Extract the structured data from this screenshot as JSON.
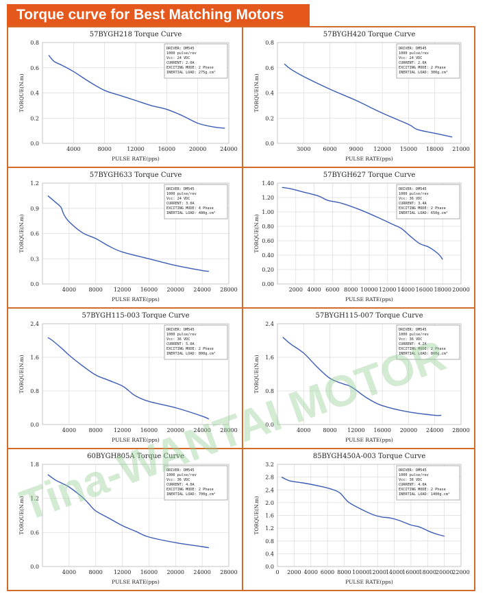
{
  "header": {
    "title": "Torque curve for Best Matching Motors"
  },
  "watermark": {
    "text": "Tina-WANTAI MOTOR"
  },
  "chart_data": [
    {
      "type": "line",
      "title": "57BYGH218 Torque Curve",
      "xlabel": "PULSE RATE(pps)",
      "ylabel": "TORQUE(N.m)",
      "xlim": [
        0,
        24000
      ],
      "ylim": [
        0,
        0.8
      ],
      "xticks": [
        0,
        4000,
        8000,
        12000,
        16000,
        20000,
        24000
      ],
      "xtick_labels": [
        "",
        "4000",
        "8000",
        "12000",
        "16000",
        "20000",
        "24000"
      ],
      "yticks": [
        0,
        0.2,
        0.4,
        0.6,
        0.8
      ],
      "ytick_labels": [
        "0.0",
        "0.2",
        "0.4",
        "0.6",
        "0.8"
      ],
      "grid": true,
      "legend": "top-right",
      "info": [
        "DRIVER: DM545",
        "1000  pulse/rev",
        "Vcc: 24 VDC",
        "CURRENT: 2.0A",
        "EXCITING MODE: 2 Phase",
        "INERTIAL LOAD: 275g.cm²"
      ],
      "x": [
        800,
        1500,
        2500,
        4000,
        6000,
        8000,
        10000,
        12000,
        14000,
        16000,
        18000,
        20000,
        22000,
        23500
      ],
      "y": [
        0.7,
        0.65,
        0.62,
        0.57,
        0.49,
        0.42,
        0.38,
        0.34,
        0.3,
        0.27,
        0.22,
        0.16,
        0.13,
        0.12
      ]
    },
    {
      "type": "line",
      "title": "57BYGH420 Torque Curve",
      "xlabel": "PULSE RATE(pps)",
      "ylabel": "TORQUE(N.m)",
      "xlim": [
        0,
        21000
      ],
      "ylim": [
        0,
        0.8
      ],
      "xticks": [
        0,
        3000,
        6000,
        9000,
        12000,
        15000,
        18000,
        21000
      ],
      "xtick_labels": [
        "",
        "3000",
        "6000",
        "9000",
        "12000",
        "15000",
        "18000",
        "21000"
      ],
      "yticks": [
        0,
        0.2,
        0.4,
        0.6,
        0.8
      ],
      "ytick_labels": [
        "0.0",
        "0.2",
        "0.4",
        "0.6",
        "0.8"
      ],
      "grid": true,
      "legend": "top-right",
      "info": [
        "DRIVER: DM545",
        "1000  pulse/rev",
        "Vcc: 24 VDC",
        "CURRENT: 2.0A",
        "EXCITING MODE: 2 Phase",
        "INERTIAL LOAD: 300g.cm²"
      ],
      "x": [
        800,
        1500,
        3000,
        6000,
        9000,
        12000,
        15000,
        16000,
        18000,
        20000
      ],
      "y": [
        0.63,
        0.59,
        0.53,
        0.43,
        0.34,
        0.24,
        0.15,
        0.11,
        0.08,
        0.05
      ]
    },
    {
      "type": "line",
      "title": "57BYGH633 Torque Curve",
      "xlabel": "PULSE RATE(pps)",
      "ylabel": "TORQUE(N.m)",
      "xlim": [
        0,
        28000
      ],
      "ylim": [
        0,
        1.2
      ],
      "xticks": [
        0,
        4000,
        8000,
        12000,
        16000,
        20000,
        24000,
        28000
      ],
      "xtick_labels": [
        "",
        "4000",
        "8000",
        "12000",
        "16000",
        "20000",
        "24000",
        "28000"
      ],
      "yticks": [
        0,
        0.3,
        0.6,
        0.9,
        1.2
      ],
      "ytick_labels": [
        "0.0",
        "0.3",
        "0.6",
        "0.9",
        "1.2"
      ],
      "grid": true,
      "legend": "top-right",
      "info": [
        "DRIVER: DM545",
        "1000 pulse/rev",
        "Vcc: 24 VDC",
        "CURRENT: 3.0A",
        "EXCITING MODE: 4 Phase",
        "INERTIAL LOAD: 480g.cm²"
      ],
      "x": [
        800,
        2000,
        2800,
        3200,
        4000,
        6000,
        8000,
        10000,
        12000,
        16000,
        20000,
        24000,
        25000
      ],
      "y": [
        1.05,
        0.97,
        0.91,
        0.83,
        0.74,
        0.61,
        0.54,
        0.45,
        0.38,
        0.3,
        0.22,
        0.16,
        0.15
      ]
    },
    {
      "type": "line",
      "title": "57BYGH627 Torque Curve",
      "xlabel": "PULSE RATE(pps)",
      "ylabel": "TORQUE(N.m)",
      "xlim": [
        0,
        20000
      ],
      "ylim": [
        0,
        1.4
      ],
      "xticks": [
        0,
        2000,
        4000,
        6000,
        8000,
        10000,
        12000,
        14000,
        16000,
        18000,
        20000
      ],
      "xtick_labels": [
        "",
        "2000",
        "4000",
        "6000",
        "8000",
        "10000",
        "12000",
        "14000",
        "16000",
        "18000",
        "20000"
      ],
      "yticks": [
        0,
        0.2,
        0.4,
        0.6,
        0.8,
        1.0,
        1.2,
        1.4
      ],
      "ytick_labels": [
        "0.00",
        "0.20",
        "0.40",
        "0.60",
        "0.80",
        "1.00",
        "1.20",
        "1.40"
      ],
      "grid": true,
      "legend": "top-right",
      "info": [
        "DRIVER: DM545",
        "1000 pulse/rev",
        "Vcc: 36 VDC",
        "CURRENT: 3.4A",
        "EXCITING MODE: 2 Phase",
        "INERTIAL LOAD: 650g.cm²"
      ],
      "x": [
        500,
        1500,
        3000,
        4500,
        5500,
        7000,
        9000,
        11000,
        12500,
        13500,
        14500,
        15500,
        16500,
        17500,
        18000
      ],
      "y": [
        1.34,
        1.32,
        1.27,
        1.22,
        1.16,
        1.12,
        1.03,
        0.92,
        0.83,
        0.77,
        0.66,
        0.56,
        0.51,
        0.42,
        0.34
      ]
    },
    {
      "type": "line",
      "title": "57BYGH115-003 Torque Curve",
      "xlabel": "PULSE RATE(pps)",
      "ylabel": "TORQUE(N.m)",
      "xlim": [
        0,
        28000
      ],
      "ylim": [
        0,
        2.4
      ],
      "xticks": [
        0,
        4000,
        8000,
        12000,
        16000,
        20000,
        24000,
        28000
      ],
      "xtick_labels": [
        "",
        "4000",
        "8000",
        "12000",
        "16000",
        "20000",
        "24000",
        "28000"
      ],
      "yticks": [
        0,
        0.8,
        1.6,
        2.4
      ],
      "ytick_labels": [
        "0.0",
        "0.8",
        "1.6",
        "2.4"
      ],
      "grid": true,
      "legend": "top-right",
      "info": [
        "DRIVER: DM545",
        "1000 pulse/rev",
        "Vcc: 36 VDC",
        "CURRENT: 5.0A",
        "EXCITING MODE: 2 Phase",
        "INERTIAL LOAD: 800g.cm²"
      ],
      "x": [
        800,
        1500,
        3000,
        4000,
        6000,
        8000,
        10000,
        12000,
        13000,
        14000,
        16000,
        20000,
        24000,
        25000
      ],
      "y": [
        2.07,
        2.0,
        1.8,
        1.65,
        1.4,
        1.18,
        1.05,
        0.92,
        0.8,
        0.68,
        0.55,
        0.4,
        0.2,
        0.13
      ]
    },
    {
      "type": "line",
      "title": "57BYGH115-007 Torque Curve",
      "xlabel": "PULSE RATE(pps)",
      "ylabel": "TORQUE(N.m)",
      "xlim": [
        0,
        28000
      ],
      "ylim": [
        0,
        2.4
      ],
      "xticks": [
        0,
        4000,
        8000,
        12000,
        16000,
        20000,
        24000,
        28000
      ],
      "xtick_labels": [
        "",
        "4000",
        "8000",
        "12000",
        "16000",
        "20000",
        "24000",
        "28000"
      ],
      "yticks": [
        0,
        0.8,
        1.6,
        2.4
      ],
      "ytick_labels": [
        "0.0",
        "0.8",
        "1.6",
        "2.4"
      ],
      "grid": true,
      "legend": "top-right",
      "info": [
        "DRIVER: DM545",
        "1000 pulse/rev",
        "Vcc: 36 VDC",
        "CURRENT: 4.2A",
        "EXCITING MODE: 2 Phase",
        "INERTIAL LOAD: 800g.cm²"
      ],
      "x": [
        800,
        2000,
        4000,
        6000,
        8000,
        10000,
        11000,
        12000,
        13000,
        14000,
        16000,
        20000,
        24000,
        25000
      ],
      "y": [
        2.08,
        1.92,
        1.7,
        1.38,
        1.1,
        0.97,
        0.92,
        0.82,
        0.7,
        0.6,
        0.45,
        0.3,
        0.22,
        0.22
      ]
    },
    {
      "type": "line",
      "title": "60BYGH805A Torque Curve",
      "xlabel": "PULSE RATE(pps)",
      "ylabel": "TORQUE(N.m)",
      "xlim": [
        0,
        28000
      ],
      "ylim": [
        0,
        1.8
      ],
      "xticks": [
        0,
        4000,
        8000,
        12000,
        16000,
        20000,
        24000,
        28000
      ],
      "xtick_labels": [
        "",
        "4000",
        "8000",
        "12000",
        "16000",
        "20000",
        "24000",
        "28000"
      ],
      "yticks": [
        0,
        0.6,
        1.2,
        1.8
      ],
      "ytick_labels": [
        "0.0",
        "0.6",
        "1.2",
        "1.8"
      ],
      "grid": true,
      "legend": "top-right",
      "info": [
        "DRIVER: DM545",
        "1000  pulse/rev",
        "Vcc: 36 VDC",
        "CURRENT: 4.0A",
        "EXCITING MODE: 2 Phase",
        "INERTIAL LOAD: 700g.cm²"
      ],
      "x": [
        800,
        2000,
        4000,
        6000,
        7000,
        8000,
        10000,
        12000,
        14000,
        16000,
        20000,
        24000,
        25000
      ],
      "y": [
        1.62,
        1.52,
        1.4,
        1.22,
        1.1,
        0.98,
        0.85,
        0.72,
        0.62,
        0.52,
        0.42,
        0.35,
        0.33
      ]
    },
    {
      "type": "line",
      "title": "85BYGH450A-003 Torque Curve",
      "xlabel": "PULSE RATE(pps)",
      "ylabel": "TORQUE(N.m)",
      "xlim": [
        0,
        22000
      ],
      "ylim": [
        0,
        3.2
      ],
      "xticks": [
        0,
        2000,
        4000,
        6000,
        8000,
        10000,
        12000,
        14000,
        16000,
        18000,
        20000,
        22000
      ],
      "xtick_labels": [
        "0",
        "2000",
        "4000",
        "6000",
        "8000",
        "10000",
        "12000",
        "14000",
        "16000",
        "18000",
        "20000",
        "22000"
      ],
      "yticks": [
        0,
        0.4,
        0.8,
        1.2,
        1.6,
        2.0,
        2.4,
        2.8,
        3.2
      ],
      "ytick_labels": [
        "0.0",
        "0.4",
        "0.8",
        "1.2",
        "1.6",
        "2.0",
        "2.4",
        "2.8",
        "3.2"
      ],
      "grid": true,
      "legend": "top-right",
      "info": [
        "DRIVER: DM545",
        "1000  pulse/rev",
        "Vcc: 36 VDC",
        "CURRENT: 4.0A",
        "EXCITING MODE: 2 Phase",
        "INERTIAL LOAD: 1400g.cm²"
      ],
      "x": [
        500,
        1500,
        3000,
        5000,
        6500,
        7500,
        8500,
        10000,
        11500,
        12500,
        13500,
        14500,
        16000,
        17000,
        18000,
        19000,
        20000
      ],
      "y": [
        2.8,
        2.68,
        2.62,
        2.52,
        2.42,
        2.3,
        2.02,
        1.8,
        1.62,
        1.55,
        1.52,
        1.45,
        1.3,
        1.24,
        1.12,
        1.02,
        0.95
      ]
    }
  ]
}
